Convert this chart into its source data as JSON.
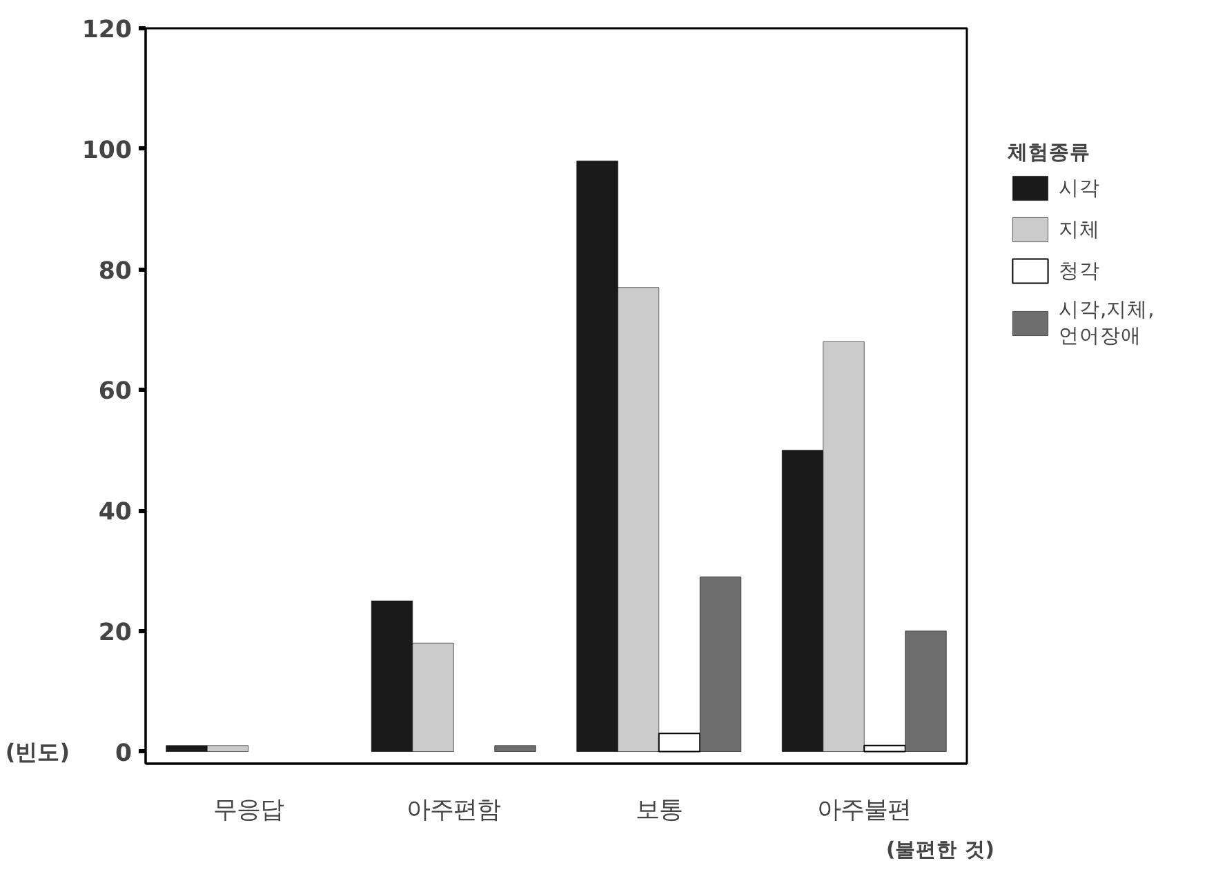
{
  "chart_data": {
    "type": "bar",
    "categories": [
      "무응답",
      "아주편함",
      "보통",
      "아주불편"
    ],
    "ylabel": "(빈도)",
    "xlabel": "(불편한 것)",
    "legend_title": "체험종류",
    "legend": "right",
    "ylim": [
      -2,
      120
    ],
    "yticks": [
      0,
      20,
      40,
      60,
      80,
      100,
      120
    ],
    "grid": false,
    "series": [
      {
        "name": "시각",
        "color": "#1a1a1a",
        "values": [
          1,
          25,
          98,
          50
        ]
      },
      {
        "name": "지체",
        "color": "#cbcbcb",
        "values": [
          1,
          18,
          77,
          68
        ]
      },
      {
        "name": "청각",
        "color": "#ffffff",
        "values": [
          0,
          0,
          3,
          1
        ]
      },
      {
        "name": "시각,지체,\n언어장애",
        "color": "#6e6e6e",
        "values": [
          0,
          1,
          29,
          20
        ]
      }
    ]
  }
}
